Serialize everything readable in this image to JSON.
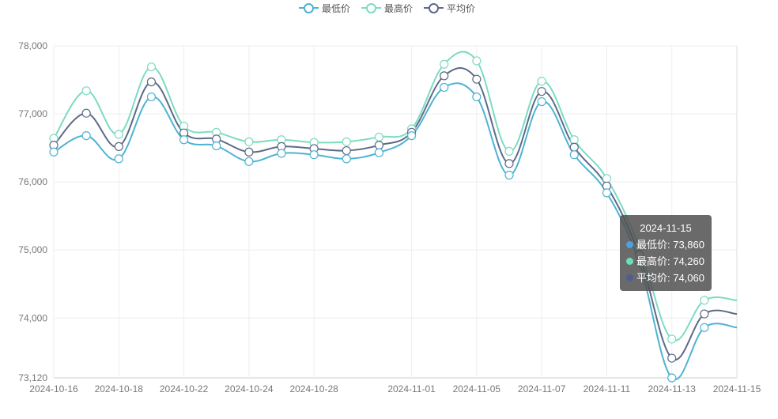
{
  "legend": {
    "items": [
      {
        "label": "最低价",
        "color": "#4db3d3"
      },
      {
        "label": "最高价",
        "color": "#7ddbc2"
      },
      {
        "label": "平均价",
        "color": "#5e6a86"
      }
    ]
  },
  "tooltip": {
    "title": "2024-11-15",
    "rows": [
      {
        "label": "最低价: 73,860",
        "color": "#4aa3dc"
      },
      {
        "label": "最高价: 74,260",
        "color": "#6be0b6"
      },
      {
        "label": "平均价: 74,060",
        "color": "#4f5f8c"
      }
    ]
  },
  "chart_data": {
    "type": "line",
    "x": [
      "2024-10-16",
      "2024-10-17",
      "2024-10-18",
      "2024-10-21",
      "2024-10-22",
      "2024-10-23",
      "2024-10-24",
      "2024-10-25",
      "2024-10-28",
      "2024-10-29",
      "2024-10-30",
      "2024-11-01",
      "2024-11-04",
      "2024-11-05",
      "2024-11-06",
      "2024-11-07",
      "2024-11-08",
      "2024-11-11",
      "2024-11-12",
      "2024-11-13",
      "2024-11-14",
      "2024-11-15"
    ],
    "x_tick_labels": [
      "2024-10-16",
      "2024-10-18",
      "2024-10-22",
      "2024-10-24",
      "2024-10-28",
      "2024-11-01",
      "2024-11-05",
      "2024-11-07",
      "2024-11-11",
      "2024-11-13",
      "2024-11-15"
    ],
    "y_tick_labels": [
      "73,120",
      "74,000",
      "75,000",
      "76,000",
      "77,000",
      "78,000"
    ],
    "y_ticks": [
      73120,
      74000,
      75000,
      76000,
      77000,
      78000
    ],
    "ylim": [
      73120,
      78000
    ],
    "series": [
      {
        "name": "最低价",
        "color": "#4db3d3",
        "values": [
          76440,
          76680,
          76340,
          77250,
          76620,
          76530,
          76300,
          76420,
          76400,
          76340,
          76430,
          76680,
          77390,
          77250,
          76100,
          77180,
          76400,
          75840,
          74810,
          73120,
          73860,
          73860
        ]
      },
      {
        "name": "最高价",
        "color": "#7ddbc2",
        "values": [
          76640,
          77340,
          76700,
          77690,
          76820,
          76730,
          76590,
          76620,
          76580,
          76590,
          76660,
          76780,
          77730,
          77780,
          76450,
          77480,
          76620,
          76050,
          75050,
          73690,
          74260,
          74260
        ]
      },
      {
        "name": "平均价",
        "color": "#5e6a86",
        "values": [
          76540,
          77010,
          76520,
          77470,
          76720,
          76630,
          76440,
          76520,
          76490,
          76460,
          76540,
          76730,
          77560,
          77510,
          76270,
          77330,
          76510,
          75940,
          74930,
          73410,
          74060,
          74060
        ]
      }
    ],
    "active_index": 21,
    "grid": true,
    "legend_position": "top-center"
  }
}
